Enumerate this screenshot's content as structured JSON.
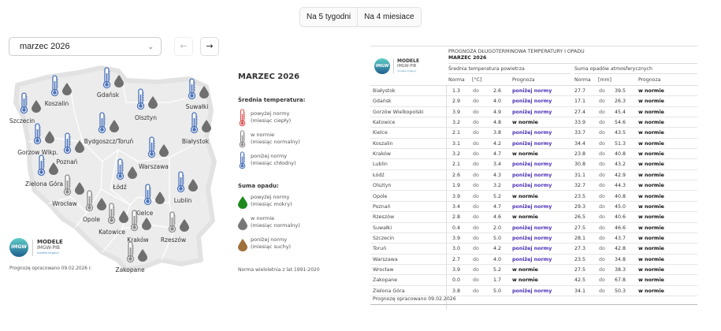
{
  "tabs": [
    {
      "label": "Na 5 tygodni"
    },
    {
      "label": "Na 4 miesiace"
    }
  ],
  "month_select": {
    "value": "marzec 2026"
  },
  "nav": {
    "prev": "←",
    "next": "→"
  },
  "map": {
    "title": "MARZEC 2026",
    "temp_legend_title": "Średnia temperatura:",
    "temp_legend": [
      {
        "label": "powyżej normy",
        "sub": "(miesiąc ciepły)",
        "color": "#d9534f"
      },
      {
        "label": "w normie",
        "sub": "(miesiąc normalny)",
        "color": "#8a8a8a"
      },
      {
        "label": "poniżej normy",
        "sub": "(miesiąc chłodny)",
        "color": "#4a72b8"
      }
    ],
    "precip_legend_title": "Suma opadu:",
    "precip_legend": [
      {
        "label": "powyżej normy",
        "sub": "(miesiąc mokry)",
        "color": "#1e8a1e"
      },
      {
        "label": "w normie",
        "sub": "(miesiąc normalny)",
        "color": "#777777"
      },
      {
        "label": "poniżej normy",
        "sub": "(miesiąc suchy)",
        "color": "#a0703a"
      }
    ],
    "norm_note": "Norma wieloletnia z lat 1991-2020",
    "footer": "Prognozę opracowano 09.02.2026 r.",
    "cities": [
      {
        "name": "Szczecin",
        "temp": "below",
        "precip": "normal"
      },
      {
        "name": "Koszalin",
        "temp": "below",
        "precip": "normal"
      },
      {
        "name": "Gdańsk",
        "temp": "below",
        "precip": "normal"
      },
      {
        "name": "Olsztyn",
        "temp": "below",
        "precip": "normal"
      },
      {
        "name": "Suwałki",
        "temp": "below",
        "precip": "normal"
      },
      {
        "name": "Białystok",
        "temp": "below",
        "precip": "normal"
      },
      {
        "name": "Bydgoszcz/Toruń",
        "temp": "below",
        "precip": "normal"
      },
      {
        "name": "Gorzow Wlkp.",
        "temp": "below",
        "precip": "normal"
      },
      {
        "name": "Poznań",
        "temp": "below",
        "precip": "normal"
      },
      {
        "name": "Warszawa",
        "temp": "below",
        "precip": "normal"
      },
      {
        "name": "Zielona Góra",
        "temp": "below",
        "precip": "normal"
      },
      {
        "name": "Łódź",
        "temp": "below",
        "precip": "normal"
      },
      {
        "name": "Wrocław",
        "temp": "normal",
        "precip": "normal"
      },
      {
        "name": "Lublin",
        "temp": "below",
        "precip": "normal"
      },
      {
        "name": "Kielce",
        "temp": "below",
        "precip": "normal"
      },
      {
        "name": "Opole",
        "temp": "normal",
        "precip": "normal"
      },
      {
        "name": "Katowice",
        "temp": "normal",
        "precip": "normal"
      },
      {
        "name": "Kraków",
        "temp": "normal",
        "precip": "normal"
      },
      {
        "name": "Rzeszów",
        "temp": "normal",
        "precip": "normal"
      },
      {
        "name": "Zakopane",
        "temp": "normal",
        "precip": "normal"
      }
    ]
  },
  "logo": {
    "line1": "MODELE",
    "line2": "IMGW-PIB",
    "url": "modele.imgw.pl",
    "mark": "IMGW"
  },
  "table": {
    "title": "PROGNOZA DŁUGOTERMINOWA TEMPERATURY I OPADU",
    "subtitle": "MARZEC 2026",
    "temp_group": "Średnia temperatura powietrza",
    "precip_group": "Suma opadów atmosferycznych",
    "col_norma": "Norma",
    "col_unit_temp": "[°C]",
    "col_prognoza": "Prognoza",
    "col_unit_precip": "[mm]",
    "sep": "do",
    "rows": [
      {
        "city": "Białystok",
        "t_from": "1.3",
        "t_to": "2.6",
        "t_fc": "poniżej normy",
        "p_from": "27.7",
        "p_to": "39.5",
        "p_fc": "w normie"
      },
      {
        "city": "Gdańsk",
        "t_from": "2.9",
        "t_to": "4.0",
        "t_fc": "poniżej normy",
        "p_from": "17.1",
        "p_to": "26.3",
        "p_fc": "w normie"
      },
      {
        "city": "Gorzów Wielkopolski",
        "t_from": "3.9",
        "t_to": "4.9",
        "t_fc": "poniżej normy",
        "p_from": "27.4",
        "p_to": "45.4",
        "p_fc": "w normie"
      },
      {
        "city": "Katowice",
        "t_from": "3.2",
        "t_to": "4.8",
        "t_fc": "w normie",
        "p_from": "33.9",
        "p_to": "54.6",
        "p_fc": "w normie"
      },
      {
        "city": "Kielce",
        "t_from": "2.1",
        "t_to": "3.8",
        "t_fc": "poniżej normy",
        "p_from": "33.7",
        "p_to": "43.5",
        "p_fc": "w normie"
      },
      {
        "city": "Koszalin",
        "t_from": "3.1",
        "t_to": "4.2",
        "t_fc": "poniżej normy",
        "p_from": "34.4",
        "p_to": "51.3",
        "p_fc": "w normie"
      },
      {
        "city": "Kraków",
        "t_from": "3.2",
        "t_to": "4.7",
        "t_fc": "w normie",
        "p_from": "23.8",
        "p_to": "40.8",
        "p_fc": "w normie"
      },
      {
        "city": "Lublin",
        "t_from": "2.1",
        "t_to": "3.4",
        "t_fc": "poniżej normy",
        "p_from": "30.8",
        "p_to": "43.2",
        "p_fc": "w normie"
      },
      {
        "city": "Łódź",
        "t_from": "2.6",
        "t_to": "4.3",
        "t_fc": "poniżej normy",
        "p_from": "31.1",
        "p_to": "42.9",
        "p_fc": "w normie"
      },
      {
        "city": "Olsztyn",
        "t_from": "1.9",
        "t_to": "3.2",
        "t_fc": "poniżej normy",
        "p_from": "32.7",
        "p_to": "44.3",
        "p_fc": "w normie"
      },
      {
        "city": "Opole",
        "t_from": "3.9",
        "t_to": "5.2",
        "t_fc": "w normie",
        "p_from": "23.5",
        "p_to": "40.8",
        "p_fc": "w normie"
      },
      {
        "city": "Poznań",
        "t_from": "3.4",
        "t_to": "4.7",
        "t_fc": "poniżej normy",
        "p_from": "29.3",
        "p_to": "45.0",
        "p_fc": "w normie"
      },
      {
        "city": "Rzeszów",
        "t_from": "2.8",
        "t_to": "4.6",
        "t_fc": "w normie",
        "p_from": "26.5",
        "p_to": "40.6",
        "p_fc": "w normie"
      },
      {
        "city": "Suwałki",
        "t_from": "0.4",
        "t_to": "2.0",
        "t_fc": "poniżej normy",
        "p_from": "27.5",
        "p_to": "46.6",
        "p_fc": "w normie"
      },
      {
        "city": "Szczecin",
        "t_from": "3.9",
        "t_to": "5.0",
        "t_fc": "poniżej normy",
        "p_from": "28.1",
        "p_to": "43.7",
        "p_fc": "w normie"
      },
      {
        "city": "Toruń",
        "t_from": "3.0",
        "t_to": "4.2",
        "t_fc": "poniżej normy",
        "p_from": "27.3",
        "p_to": "42.8",
        "p_fc": "w normie"
      },
      {
        "city": "Warszawa",
        "t_from": "2.7",
        "t_to": "4.0",
        "t_fc": "poniżej normy",
        "p_from": "23.5",
        "p_to": "34.8",
        "p_fc": "w normie"
      },
      {
        "city": "Wrocław",
        "t_from": "3.9",
        "t_to": "5.2",
        "t_fc": "w normie",
        "p_from": "27.5",
        "p_to": "38.3",
        "p_fc": "w normie"
      },
      {
        "city": "Zakopane",
        "t_from": "0.0",
        "t_to": "1.7",
        "t_fc": "w normie",
        "p_from": "42.5",
        "p_to": "67.8",
        "p_fc": "w normie"
      },
      {
        "city": "Zielona Góra",
        "t_from": "3.8",
        "t_to": "5.0",
        "t_fc": "poniżej normy",
        "p_from": "34.1",
        "p_to": "50.3",
        "p_fc": "w normie"
      }
    ],
    "footer": "Prognozę opracowano 09.02.2026"
  }
}
